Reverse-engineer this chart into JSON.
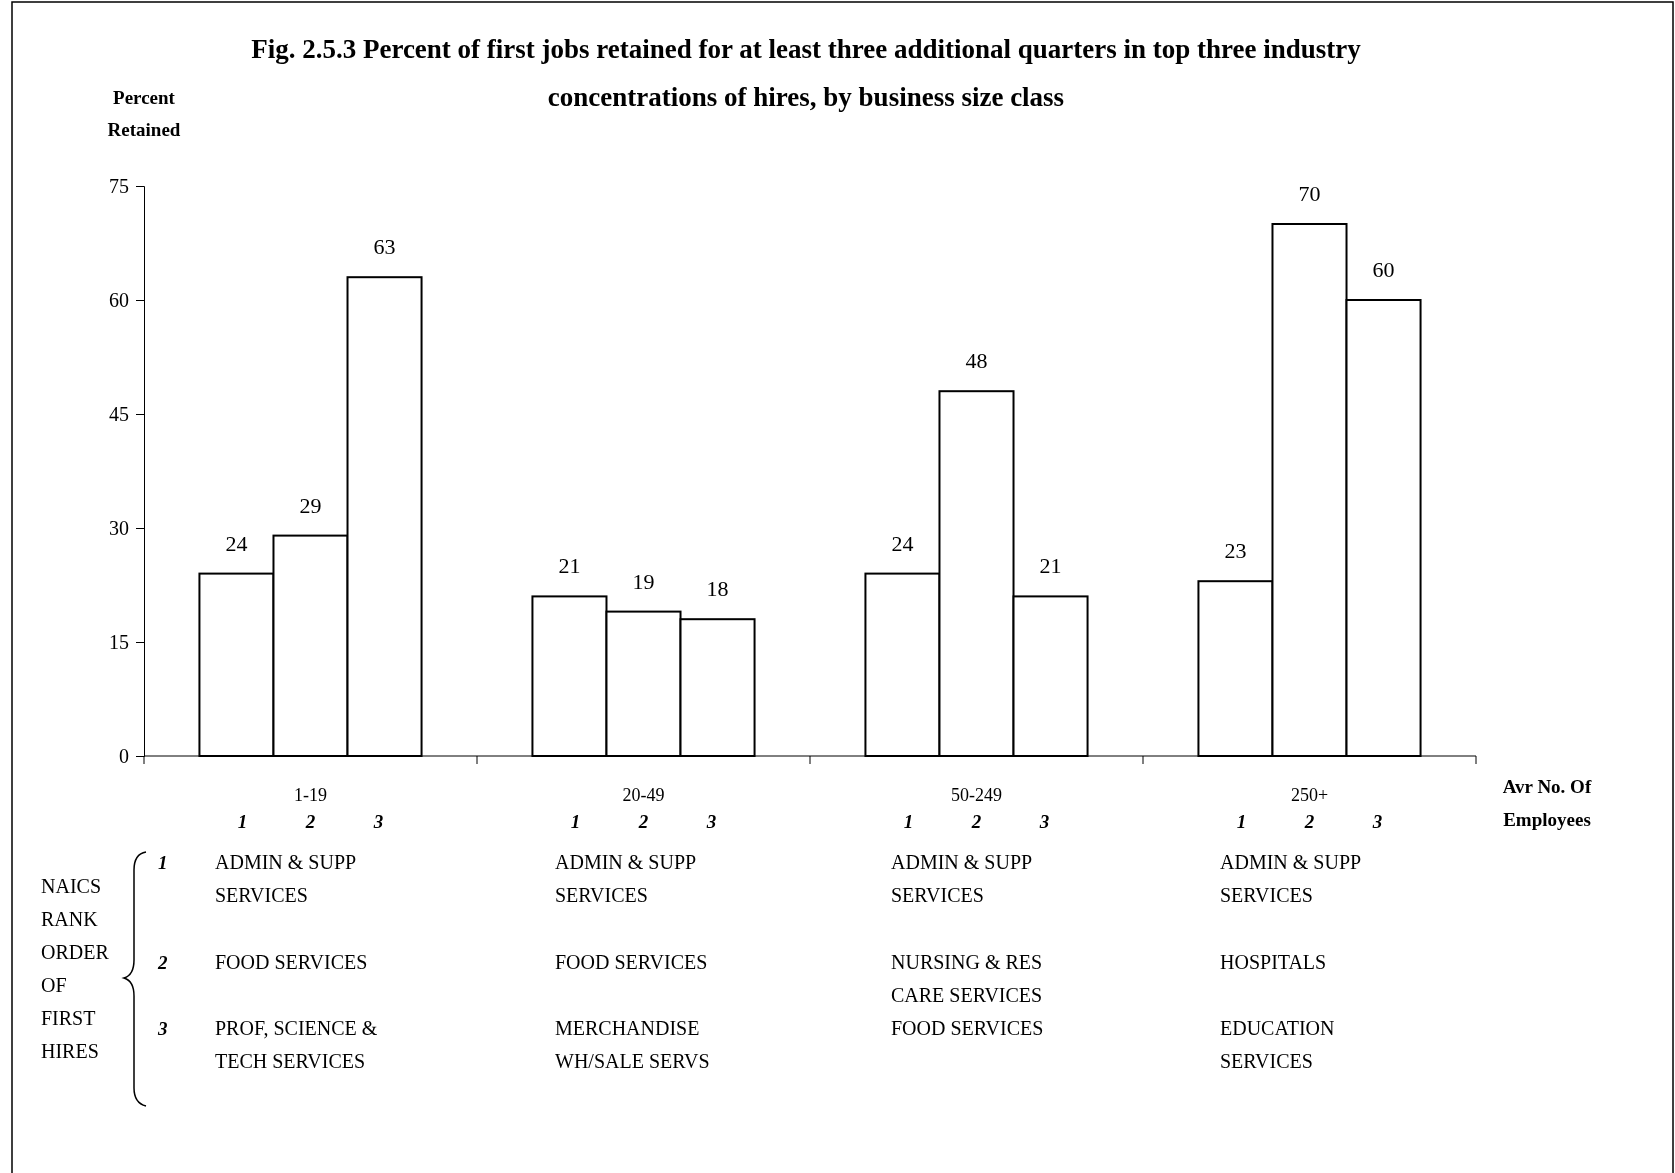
{
  "chart_data": {
    "type": "bar",
    "title": "Fig. 2.5.3 Percent of first jobs retained for at least three additional quarters in top three industry concentrations of hires, by business size class",
    "ylabel": "Percent Retained",
    "xlabel": "Avr No. Of Employees",
    "categories": [
      "1-19",
      "20-49",
      "50-249",
      "250+"
    ],
    "series": [
      {
        "name": "1",
        "color": "#ffffff",
        "values": [
          24,
          21,
          24,
          23
        ]
      },
      {
        "name": "2",
        "color": "#ffffff",
        "values": [
          29,
          19,
          48,
          70
        ]
      },
      {
        "name": "3",
        "color": "#ffffff",
        "values": [
          63,
          18,
          21,
          60
        ]
      }
    ],
    "ylim": [
      0,
      75
    ],
    "yticks": [
      0,
      15,
      30,
      45,
      60,
      75
    ],
    "data_labels": true,
    "annotations": [
      "NAICS RANK ORDER OF FIRST HIRES",
      "ADMIN & SUPP SERVICES",
      "FOOD SERVICES",
      "PROF, SCIENCE & TECH SERVICES",
      "ADMIN & SUPP SERVICES",
      "FOOD SERVICES",
      "MERCHANDISE WH/SALE SERVS",
      "ADMIN & SUPP SERVICES",
      "NURSING & RES CARE SERVICES",
      "FOOD SERVICES",
      "ADMIN & SUPP SERVICES",
      "HOSPITALS",
      "EDUCATION SERVICES"
    ]
  }
}
